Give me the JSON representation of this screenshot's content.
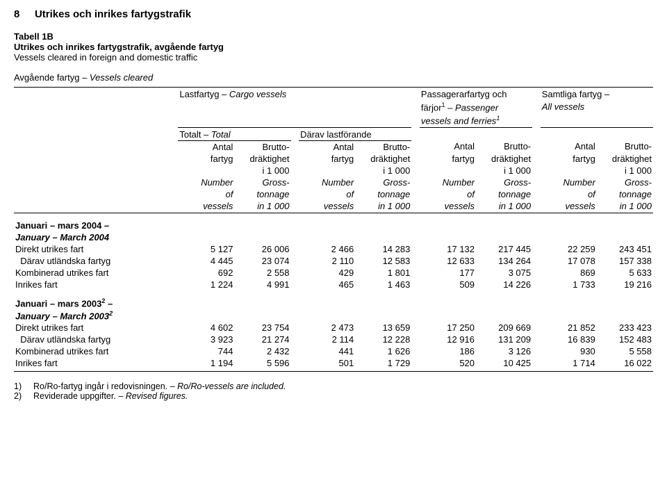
{
  "page_number": "8",
  "doc_title": "Utrikes och inrikes fartygstrafik",
  "table_label": "Tabell 1B",
  "table_title_sv": "Utrikes och inrikes fartygstrafik, avgående fartyg",
  "table_title_en": "Vessels cleared in foreign and domestic traffic",
  "stub_header_sv": "Avgående fartyg",
  "stub_header_dash": " – ",
  "stub_header_en": "Vessels cleared",
  "groups": {
    "g1_sv": "Lastfartyg",
    "g1_dash": " – ",
    "g1_en": "Cargo vessels",
    "g1a_sv": "Totalt",
    "g1a_dash": " – ",
    "g1a_en": "Total",
    "g1b_sv": "Därav lastförande",
    "g2_line1_sv": "Passagerarfartyg och",
    "g2_line2_sv": "färjor",
    "g2_sup": "1",
    "g2_line2_dash": " – ",
    "g2_line2_en": "Passenger",
    "g2_line3_en": "vessels and ferries",
    "g2_line3_sup": "1",
    "g3_line1_sv": "Samtliga fartyg",
    "g3_line1_dash": " – ",
    "g3_line2_en": "All vessels"
  },
  "col": {
    "a1": "Antal",
    "a2": "fartyg",
    "an1": "Number",
    "an2": "of",
    "an3": "vessels",
    "b1": "Brutto-",
    "b2": "dräktighet",
    "b3": "i 1 000",
    "bn1": "Gross-",
    "bn2": "tonnage",
    "bn3": "in 1 000"
  },
  "sections": [
    {
      "hdr_sv": "Januari – mars 2004 –",
      "hdr_en": "January – March 2004",
      "hdr_sup": "",
      "rows": [
        {
          "label": "Direkt utrikes fart",
          "v": [
            "5 127",
            "26 006",
            "2 466",
            "14 283",
            "17 132",
            "217 445",
            "22 259",
            "243 451"
          ]
        },
        {
          "label": "  Därav utländska fartyg",
          "v": [
            "4 445",
            "23 074",
            "2 110",
            "12 583",
            "12 633",
            "134 264",
            "17 078",
            "157 338"
          ]
        },
        {
          "label": "Kombinerad utrikes fart",
          "v": [
            "692",
            "2 558",
            "429",
            "1 801",
            "177",
            "3 075",
            "869",
            "5 633"
          ]
        },
        {
          "label": "Inrikes fart",
          "v": [
            "1 224",
            "4 991",
            "465",
            "1 463",
            "509",
            "14 226",
            "1 733",
            "19 216"
          ]
        }
      ]
    },
    {
      "hdr_sv": "Januari – mars 2003",
      "hdr_en": "January – March 2003",
      "hdr_sup": "2",
      "rows": [
        {
          "label": "Direkt utrikes fart",
          "v": [
            "4 602",
            "23 754",
            "2 473",
            "13 659",
            "17 250",
            "209 669",
            "21 852",
            "233 423"
          ]
        },
        {
          "label": "  Därav utländska fartyg",
          "v": [
            "3 923",
            "21 274",
            "2 114",
            "12 228",
            "12 916",
            "131 209",
            "16 839",
            "152 483"
          ]
        },
        {
          "label": "Kombinerad utrikes fart",
          "v": [
            "744",
            "2 432",
            "441",
            "1 626",
            "186",
            "3 126",
            "930",
            "5 558"
          ]
        },
        {
          "label": "Inrikes fart",
          "v": [
            "1 194",
            "5 596",
            "501",
            "1 729",
            "520",
            "10 425",
            "1 714",
            "16 022"
          ]
        }
      ]
    }
  ],
  "footnotes": [
    {
      "n": "1)",
      "sv": "Ro/Ro-fartyg ingår i redovisningen.",
      "dash": " – ",
      "en": "Ro/Ro-vessels are included."
    },
    {
      "n": "2)",
      "sv": "Reviderade uppgifter.",
      "dash": " – ",
      "en": "Revised figures."
    }
  ]
}
